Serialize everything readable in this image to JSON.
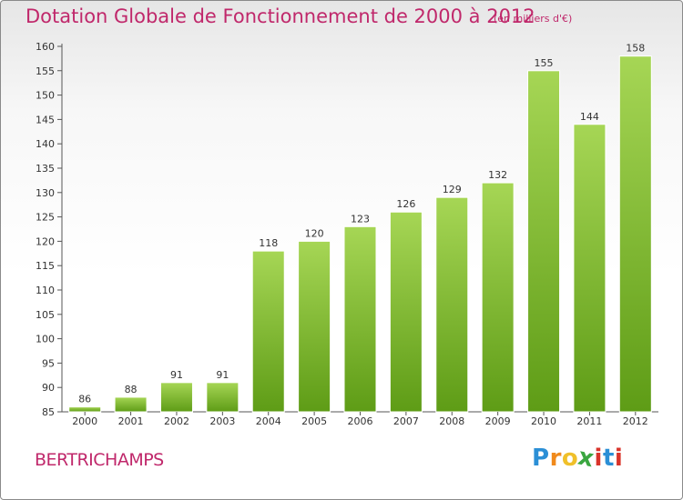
{
  "header": {
    "title": "Dotation Globale de Fonctionnement de 2000 à 2012",
    "subtitle": "(en milliers d'€)"
  },
  "footer": {
    "commune": "BERTRICHAMPS",
    "logo": {
      "letters": [
        "P",
        "r",
        "o",
        "x",
        "i",
        "t",
        "i"
      ],
      "colors": [
        "#2b8fd6",
        "#f08a1c",
        "#f0c02a",
        "#3aa640",
        "#d9342b",
        "#2b8fd6",
        "#d9342b"
      ]
    }
  },
  "colors": {
    "bar_light": "#a6d655",
    "bar_dark": "#5e9c16",
    "text": "#333333",
    "title": "#c0286b"
  },
  "chart_data": {
    "type": "bar",
    "title": "Dotation Globale de Fonctionnement de 2000 à 2012",
    "subtitle": "(en milliers d'€)",
    "categories": [
      "2000",
      "2001",
      "2002",
      "2003",
      "2004",
      "2005",
      "2006",
      "2007",
      "2008",
      "2009",
      "2010",
      "2011",
      "2012"
    ],
    "values": [
      86,
      88,
      91,
      91,
      118,
      120,
      123,
      126,
      129,
      132,
      155,
      144,
      158
    ],
    "ylim": [
      85,
      160
    ],
    "yticks": [
      85,
      90,
      95,
      100,
      105,
      110,
      115,
      120,
      125,
      130,
      135,
      140,
      145,
      150,
      155,
      160
    ],
    "grid": false,
    "data_labels": true
  }
}
